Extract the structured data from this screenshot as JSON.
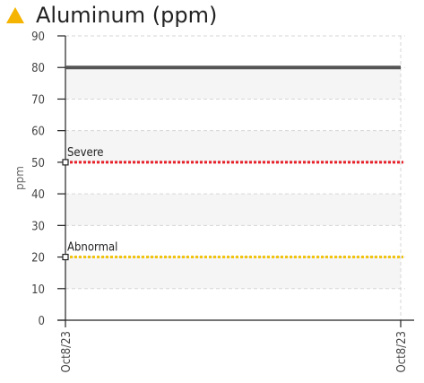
{
  "title": "Aluminum (ppm)",
  "icon": "warning-triangle-icon",
  "colors": {
    "icon": "#f5b400",
    "value_line": "#555555",
    "severe": "#e8202a",
    "abnormal": "#f1c40f",
    "band": "#f5f5f5",
    "grid": "#d6d6d6"
  },
  "chart_data": {
    "type": "line",
    "title": "Aluminum (ppm)",
    "ylabel": "ppm",
    "xlabel": "",
    "ylim": [
      0,
      90
    ],
    "yticks": [
      0,
      10,
      20,
      30,
      40,
      50,
      60,
      70,
      80,
      90
    ],
    "x": [
      "Oct8/23",
      "Oct8/23"
    ],
    "grid": true,
    "series": [
      {
        "values": [
          80,
          80
        ],
        "color": "#555555"
      }
    ],
    "thresholds": [
      {
        "name": "Severe",
        "value": 50,
        "color": "#e8202a"
      },
      {
        "name": "Abnormal",
        "value": 20,
        "color": "#f1c40f"
      }
    ]
  }
}
